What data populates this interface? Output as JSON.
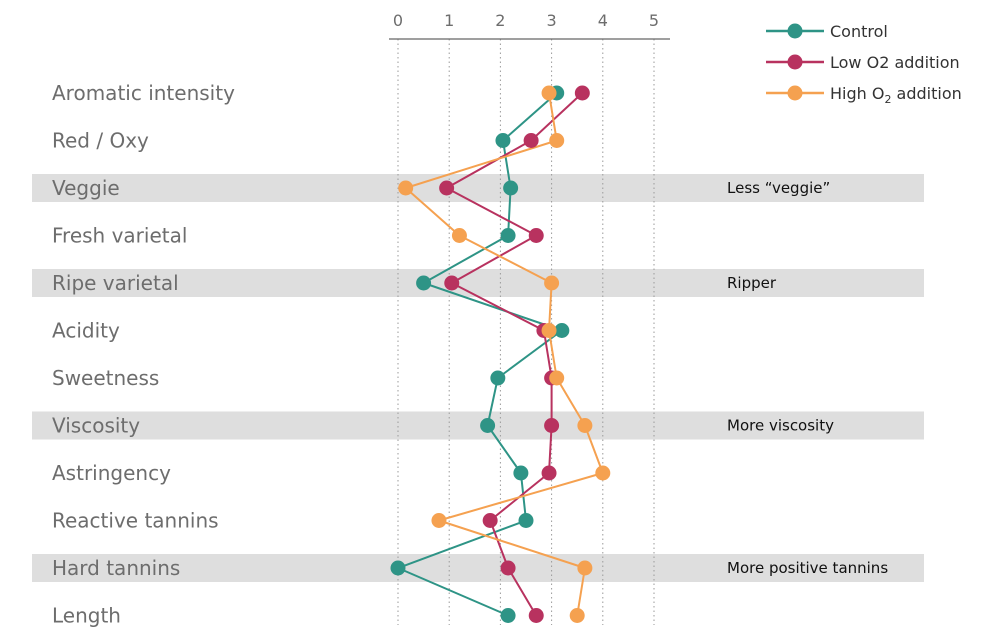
{
  "chart_data": {
    "type": "line",
    "orientation": "horizontal-dot-plot",
    "xlim": [
      0,
      5
    ],
    "x_ticks": [
      "0",
      "1",
      "2",
      "3",
      "4",
      "5"
    ],
    "grid": "vertical dotted",
    "legend_position": "top-right",
    "categories": [
      "Aromatic intensity",
      "Red / Oxy",
      "Veggie",
      "Fresh varietal",
      "Ripe varietal",
      "Acidity",
      "Sweetness",
      "Viscosity",
      "Astringency",
      "Reactive tannins",
      "Hard tannins",
      "Length"
    ],
    "highlighted_rows": [
      {
        "category": "Veggie",
        "annotation": "Less “veggie”"
      },
      {
        "category": "Ripe varietal",
        "annotation": "Ripper"
      },
      {
        "category": "Viscosity",
        "annotation": "More viscosity"
      },
      {
        "category": "Hard tannins",
        "annotation": "More positive tannins"
      }
    ],
    "series": [
      {
        "name": "Control",
        "color": "#2e9486",
        "values": [
          3.1,
          2.05,
          2.2,
          2.15,
          0.5,
          3.2,
          1.95,
          1.75,
          2.4,
          2.5,
          0.0,
          2.15
        ]
      },
      {
        "name": "Low O2 addition",
        "color": "#b8325f",
        "values": [
          3.6,
          2.6,
          0.95,
          2.7,
          1.05,
          2.85,
          3.0,
          3.0,
          2.95,
          1.8,
          2.15,
          2.7
        ]
      },
      {
        "name": "High O2 addition",
        "name_parts": [
          "High O",
          "2",
          " addition"
        ],
        "color": "#f5a150",
        "values": [
          2.95,
          3.1,
          0.15,
          1.2,
          3.0,
          2.95,
          3.1,
          3.65,
          4.0,
          0.8,
          3.65,
          3.5
        ]
      }
    ]
  }
}
